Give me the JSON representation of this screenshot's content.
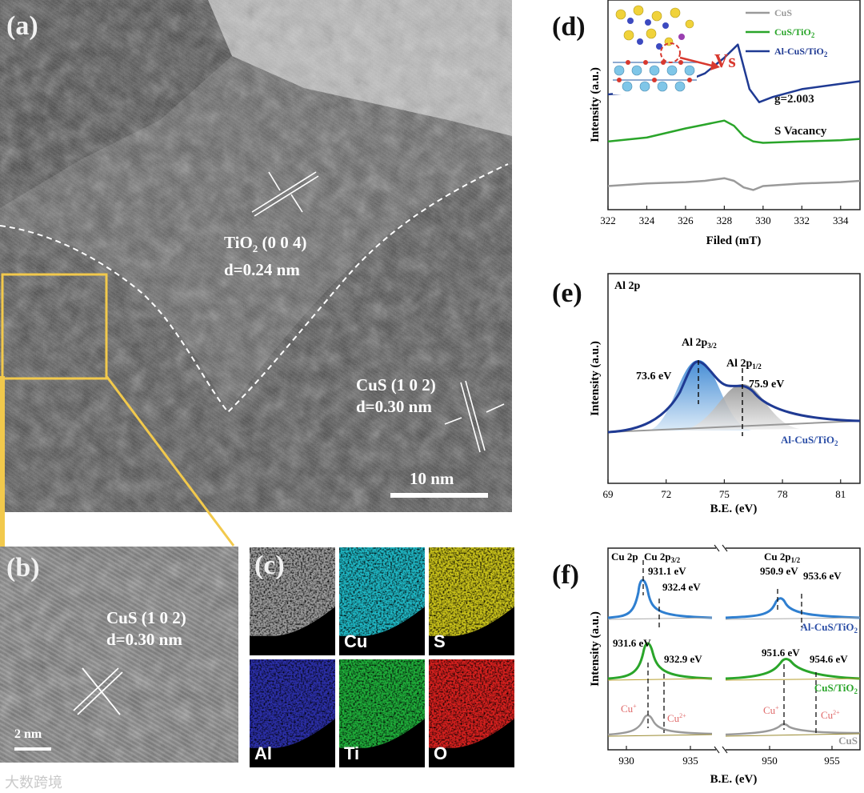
{
  "panels": {
    "a": {
      "letter": "(a)",
      "tio2_label": "TiO",
      "tio2_sub": "2",
      "tio2_plane": " (0 0 4)",
      "tio2_d": "d=0.24 nm",
      "cus_label": "CuS (1 0 2)",
      "cus_d": "d=0.30 nm",
      "scale": "10 nm"
    },
    "b": {
      "letter": "(b)",
      "cus_label": "CuS (1 0 2)",
      "cus_d": "d=0.30 nm",
      "scale": "2 nm"
    },
    "c": {
      "letter": "(c)",
      "maps": [
        {
          "label": "",
          "color": "#9a9a9a"
        },
        {
          "label": "Cu",
          "color": "#1fb7c4"
        },
        {
          "label": "S",
          "color": "#c9c21a"
        },
        {
          "label": "Al",
          "color": "#2b2fa8"
        },
        {
          "label": "Ti",
          "color": "#1fae3a"
        },
        {
          "label": "O",
          "color": "#d6201e"
        }
      ]
    },
    "d": {
      "letter": "(d)",
      "vs_label": "Vs",
      "g_label": "g=2.003",
      "vacancy_label": "S Vacancy"
    },
    "e": {
      "letter": "(e)",
      "region_label": "Al 2p",
      "peak1_name": "Al 2p",
      "peak1_sub": "3/2",
      "peak1_value": "73.6 eV",
      "peak2_name": "Al 2p",
      "peak2_sub": "1/2",
      "peak2_value": "75.9 eV",
      "sample_label": "Al-CuS/TiO",
      "sample_sub": "2"
    },
    "f": {
      "letter": "(f)",
      "region_label": "Cu 2p",
      "p32_name": "Cu 2p",
      "p32_sub": "3/2",
      "p12_name": "Cu 2p",
      "p12_sub": "1/2",
      "cu_plus": "Cu",
      "cu_plus_sup": "+",
      "cu_2plus": "Cu",
      "cu_2plus_sup": "2+",
      "al_values": [
        "931.1 eV",
        "932.4 eV",
        "950.9 eV",
        "953.6 eV"
      ],
      "cus_tio2_values": [
        "931.6 eV",
        "932.9 eV",
        "951.6 eV",
        "954.6 eV"
      ],
      "sample_labels": [
        {
          "name": "Al-CuS/TiO",
          "sub": "2",
          "color": "#2b4ea6"
        },
        {
          "name": "CuS/TiO",
          "sub": "2",
          "color": "#2aa52a"
        },
        {
          "name": "CuS",
          "sub": "",
          "color": "#9a9a9a"
        }
      ]
    }
  },
  "watermark": "大数跨境",
  "chart_data": [
    {
      "type": "line",
      "panel": "d",
      "xlabel": "Filed (mT)",
      "ylabel": "Intensity (a.u.)",
      "xlim": [
        322,
        335
      ],
      "x_ticks": [
        322,
        324,
        326,
        328,
        330,
        332,
        334
      ],
      "legend_placement": "top-right",
      "series": [
        {
          "name": "CuS",
          "color": "#9a9a9a",
          "x": [
            322,
            324,
            326,
            327,
            328,
            328.5,
            329,
            329.5,
            330,
            332,
            334,
            335
          ],
          "y": [
            0.9,
            1.0,
            1.05,
            1.1,
            1.2,
            1.1,
            0.85,
            0.75,
            0.9,
            1.0,
            1.05,
            1.1
          ]
        },
        {
          "name": "CuS/TiO2",
          "color": "#2aa52a",
          "x": [
            322,
            324,
            326,
            327,
            328,
            328.5,
            329,
            329.5,
            330,
            332,
            334,
            335
          ],
          "y": [
            2.6,
            2.75,
            3.1,
            3.25,
            3.4,
            3.2,
            2.8,
            2.6,
            2.55,
            2.6,
            2.65,
            2.7
          ]
        },
        {
          "name": "Al-CuS/TiO2",
          "color": "#1f3a93",
          "x": [
            322,
            324,
            326,
            327,
            328,
            328.7,
            329.3,
            329.8,
            330.5,
            332,
            334,
            335
          ],
          "y": [
            4.4,
            4.5,
            4.9,
            5.2,
            5.8,
            6.3,
            4.6,
            4.1,
            4.3,
            4.6,
            4.8,
            4.9
          ]
        }
      ]
    },
    {
      "type": "line",
      "panel": "e",
      "xlabel": "B.E. (eV)",
      "ylabel": "Intensity (a.u.)",
      "xlim": [
        69,
        82
      ],
      "x_ticks": [
        69,
        72,
        75,
        78,
        81
      ],
      "series": [
        {
          "name": "Al 2p 3/2",
          "peak_center": 73.6
        },
        {
          "name": "Al 2p 1/2",
          "peak_center": 75.9
        }
      ]
    },
    {
      "type": "line",
      "panel": "f",
      "xlabel": "B.E. (eV)",
      "ylabel": "Intensity (a.u.)",
      "x_ticks": [
        930,
        935,
        950,
        955
      ],
      "series": [
        {
          "name": "Al-CuS/TiO2",
          "peaks": [
            931.1,
            932.4,
            950.9,
            953.6
          ]
        },
        {
          "name": "CuS/TiO2",
          "peaks": [
            931.6,
            932.9,
            951.6,
            954.6
          ]
        },
        {
          "name": "CuS",
          "peaks": [
            931.6,
            951.6
          ]
        }
      ]
    }
  ]
}
